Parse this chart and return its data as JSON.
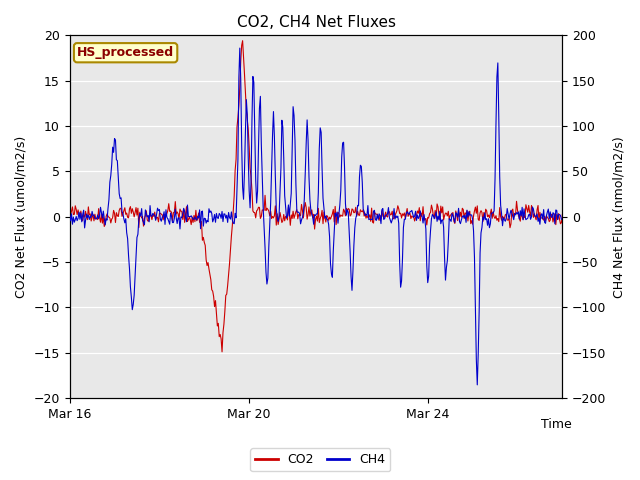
{
  "title": "CO2, CH4 Net Fluxes",
  "ylabel_left": "CO2 Net Flux (umol/m2/s)",
  "ylabel_right": "CH4 Net Flux (nmol/m2/s)",
  "xlabel": "Time",
  "ylim_left": [
    -20,
    20
  ],
  "ylim_right": [
    -200,
    200
  ],
  "annotation": "HS_processed",
  "co2_color": "#CC0000",
  "ch4_color": "#0000CC",
  "bg_color": "#E8E8E8",
  "legend_co2": "CO2",
  "legend_ch4": "CH4",
  "xtick_labels": [
    "Mar 16",
    "Mar 20",
    "Mar 24"
  ],
  "n_days": 11,
  "points_per_day": 48,
  "title_fontsize": 11,
  "label_fontsize": 9,
  "tick_fontsize": 9,
  "annotation_fontsize": 9
}
